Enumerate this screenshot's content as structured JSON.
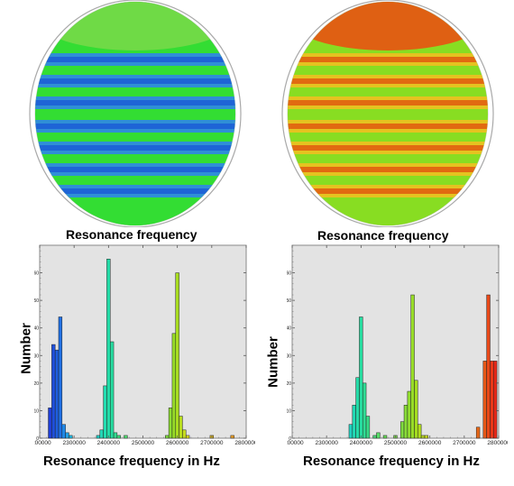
{
  "figure": {
    "left_map_caption": "Resonance frequency",
    "right_map_caption": "Resonance frequency"
  },
  "wafer_maps": [
    {
      "name": "left-wafer",
      "background": "#33dd33",
      "stripe_color": "#2f86e8",
      "stripe_core": "#1d5fd6",
      "edge_color": "#7ad94a"
    },
    {
      "name": "right-wafer",
      "background": "#88dd22",
      "stripe_color": "#f0c020",
      "stripe_core": "#e06010",
      "edge_color": "#ee4a10"
    }
  ],
  "chart_data": [
    {
      "type": "bar",
      "xlabel": "Resonance frequency in Hz",
      "ylabel": "Number",
      "xlim": [
        2200000,
        2800000
      ],
      "ylim": [
        0,
        70
      ],
      "xticks": [
        "2200000",
        "2300000",
        "2400000",
        "2500000",
        "2600000",
        "2700000",
        "2800000"
      ],
      "yticks": [
        "0",
        "10",
        "20",
        "30",
        "40",
        "50",
        "60"
      ],
      "grid": false,
      "bin_width": 10000,
      "bars": [
        {
          "x": 2230000,
          "y": 11,
          "color": "#1f3fd8"
        },
        {
          "x": 2240000,
          "y": 34,
          "color": "#1f4fdc"
        },
        {
          "x": 2250000,
          "y": 32,
          "color": "#1f5fe0"
        },
        {
          "x": 2260000,
          "y": 44,
          "color": "#2070e4"
        },
        {
          "x": 2270000,
          "y": 5,
          "color": "#2088e8"
        },
        {
          "x": 2280000,
          "y": 2,
          "color": "#20a0e8"
        },
        {
          "x": 2290000,
          "y": 1,
          "color": "#20b8e0"
        },
        {
          "x": 2370000,
          "y": 1,
          "color": "#20d0c8"
        },
        {
          "x": 2380000,
          "y": 3,
          "color": "#22d8b8"
        },
        {
          "x": 2390000,
          "y": 19,
          "color": "#22dcb0"
        },
        {
          "x": 2400000,
          "y": 65,
          "color": "#24dca8"
        },
        {
          "x": 2410000,
          "y": 35,
          "color": "#28dca0"
        },
        {
          "x": 2420000,
          "y": 2,
          "color": "#30dc90"
        },
        {
          "x": 2430000,
          "y": 1,
          "color": "#40dc80"
        },
        {
          "x": 2450000,
          "y": 1,
          "color": "#50dc70"
        },
        {
          "x": 2570000,
          "y": 1,
          "color": "#80dc40"
        },
        {
          "x": 2580000,
          "y": 11,
          "color": "#8cdc30"
        },
        {
          "x": 2590000,
          "y": 38,
          "color": "#98dc28"
        },
        {
          "x": 2600000,
          "y": 60,
          "color": "#a8dc20"
        },
        {
          "x": 2610000,
          "y": 8,
          "color": "#b8dc20"
        },
        {
          "x": 2620000,
          "y": 3,
          "color": "#c8dc20"
        },
        {
          "x": 2630000,
          "y": 1,
          "color": "#d8d820"
        },
        {
          "x": 2700000,
          "y": 1,
          "color": "#e8c020"
        },
        {
          "x": 2760000,
          "y": 1,
          "color": "#f0a020"
        }
      ]
    },
    {
      "type": "bar",
      "xlabel": "Resonance frequency in Hz",
      "ylabel": "Number",
      "xlim": [
        2200000,
        2800000
      ],
      "ylim": [
        0,
        70
      ],
      "xticks": [
        "2200000",
        "2300000",
        "2400000",
        "2500000",
        "2600000",
        "2700000",
        "2800000"
      ],
      "yticks": [
        "0",
        "10",
        "20",
        "30",
        "40",
        "50",
        "60"
      ],
      "grid": false,
      "bin_width": 10000,
      "bars": [
        {
          "x": 2370000,
          "y": 5,
          "color": "#22d0c0"
        },
        {
          "x": 2380000,
          "y": 12,
          "color": "#22d8b4"
        },
        {
          "x": 2390000,
          "y": 22,
          "color": "#24dca8"
        },
        {
          "x": 2400000,
          "y": 44,
          "color": "#28dca0"
        },
        {
          "x": 2410000,
          "y": 20,
          "color": "#30dc94"
        },
        {
          "x": 2420000,
          "y": 8,
          "color": "#38dc88"
        },
        {
          "x": 2440000,
          "y": 1,
          "color": "#48dc78"
        },
        {
          "x": 2450000,
          "y": 2,
          "color": "#58dc68"
        },
        {
          "x": 2470000,
          "y": 1,
          "color": "#68dc58"
        },
        {
          "x": 2500000,
          "y": 1,
          "color": "#78dc48"
        },
        {
          "x": 2520000,
          "y": 6,
          "color": "#80dc40"
        },
        {
          "x": 2530000,
          "y": 12,
          "color": "#88dc38"
        },
        {
          "x": 2540000,
          "y": 17,
          "color": "#90dc30"
        },
        {
          "x": 2550000,
          "y": 52,
          "color": "#98dc28"
        },
        {
          "x": 2560000,
          "y": 21,
          "color": "#a4dc20"
        },
        {
          "x": 2570000,
          "y": 5,
          "color": "#b0dc20"
        },
        {
          "x": 2580000,
          "y": 1,
          "color": "#bcdc20"
        },
        {
          "x": 2590000,
          "y": 1,
          "color": "#c8dc20"
        },
        {
          "x": 2740000,
          "y": 4,
          "color": "#e86818"
        },
        {
          "x": 2760000,
          "y": 28,
          "color": "#e85818"
        },
        {
          "x": 2770000,
          "y": 52,
          "color": "#e84818"
        },
        {
          "x": 2780000,
          "y": 28,
          "color": "#e83818"
        },
        {
          "x": 2790000,
          "y": 28,
          "color": "#e82818"
        }
      ]
    }
  ]
}
